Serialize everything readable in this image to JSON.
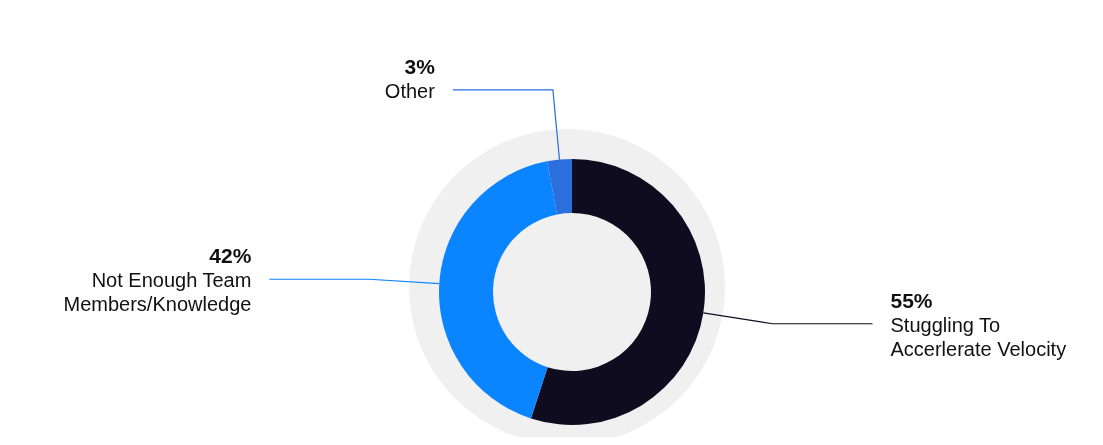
{
  "chart_data": {
    "type": "donut",
    "categories": [
      "Stuggling To Accerlerate Velocity",
      "Not Enough Team Members/Knowledge",
      "Other"
    ],
    "values": [
      55,
      42,
      3
    ],
    "colors": [
      "#0e0c1e",
      "#0a84ff",
      "#2a6fdb"
    ],
    "value_labels": [
      "55%",
      "42%",
      "3%"
    ],
    "legend": false
  }
}
